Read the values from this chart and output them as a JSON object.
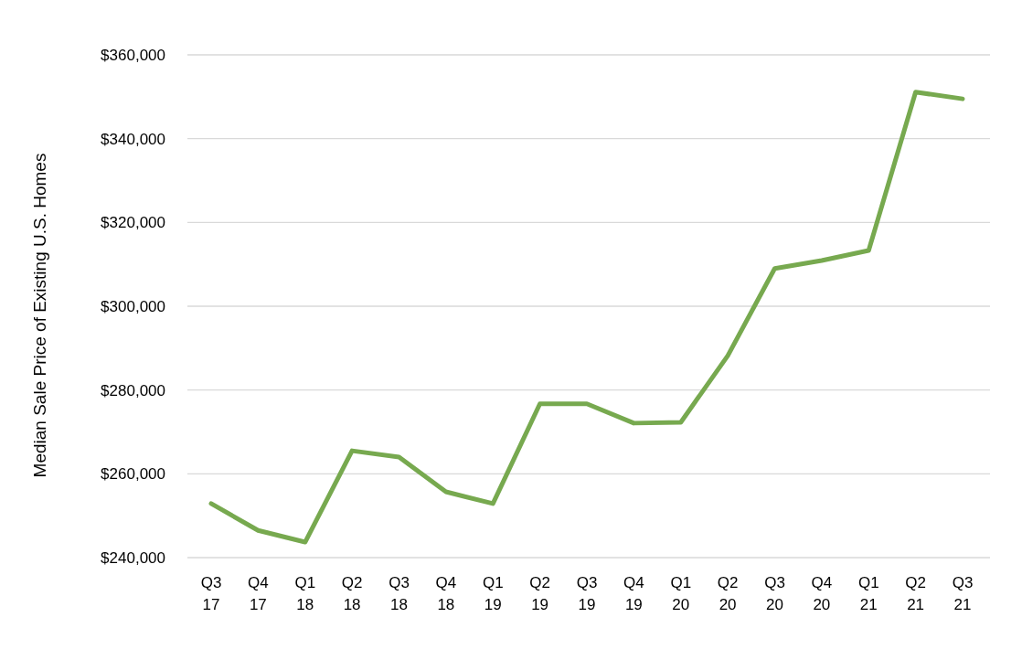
{
  "chart_data": {
    "type": "line",
    "ylabel": "Median Sale Price of Existing U.S. Homes",
    "categories": [
      "Q3 17",
      "Q4 17",
      "Q1 18",
      "Q2 18",
      "Q3 18",
      "Q4 18",
      "Q1 19",
      "Q2 19",
      "Q3 19",
      "Q4 19",
      "Q1 20",
      "Q2 20",
      "Q3 20",
      "Q4 20",
      "Q1 21",
      "Q2 21",
      "Q3 21"
    ],
    "series": [
      {
        "color": "#77a94f",
        "values": [
          252900,
          246500,
          243700,
          265500,
          264000,
          255700,
          252900,
          276700,
          276700,
          272100,
          272300,
          288200,
          309000,
          310900,
          313300,
          351100,
          349500
        ]
      }
    ],
    "ylim": [
      240000,
      360000
    ],
    "yticks": [
      {
        "value": 240000,
        "label": "$240,000"
      },
      {
        "value": 260000,
        "label": "$260,000"
      },
      {
        "value": 280000,
        "label": "$280,000"
      },
      {
        "value": 300000,
        "label": "$300,000"
      },
      {
        "value": 320000,
        "label": "$320,000"
      },
      {
        "value": 340000,
        "label": "$340,000"
      },
      {
        "value": 360000,
        "label": "$360,000"
      }
    ],
    "grid": "y",
    "marker": "none",
    "line_style": "solid"
  }
}
